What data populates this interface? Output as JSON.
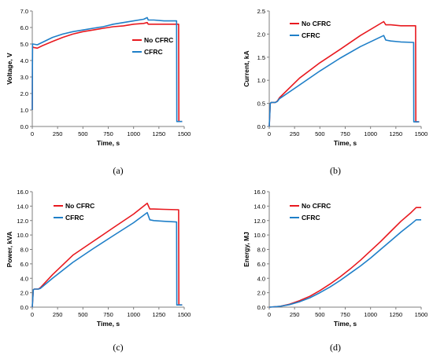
{
  "colors": {
    "no_cfrc": "#e8191f",
    "cfrc": "#1f7fc8",
    "axis": "#7f7f7f",
    "text": "#000000"
  },
  "chart_data": [
    {
      "panel": "(a)",
      "type": "line",
      "xlabel": "Time, s",
      "ylabel": "Voltage, V",
      "xlim": [
        0,
        1500
      ],
      "ylim": [
        0,
        7
      ],
      "xticks": [
        "0",
        "250",
        "500",
        "750",
        "1000",
        "1250",
        "1500"
      ],
      "yticks": [
        "0.0",
        "1.0",
        "2.0",
        "3.0",
        "4.0",
        "5.0",
        "6.0",
        "7.0"
      ],
      "legend_position": "right-middle",
      "series": [
        {
          "name": "No CFRC",
          "color": "#e8191f",
          "x": [
            0,
            2,
            5,
            50,
            100,
            200,
            300,
            400,
            500,
            600,
            700,
            800,
            900,
            1000,
            1100,
            1135,
            1145,
            1200,
            1300,
            1445,
            1447,
            1455,
            1480
          ],
          "y": [
            1.0,
            4.9,
            4.8,
            4.75,
            4.9,
            5.15,
            5.4,
            5.6,
            5.75,
            5.85,
            5.95,
            6.05,
            6.1,
            6.2,
            6.25,
            6.3,
            6.2,
            6.2,
            6.2,
            6.2,
            0.3,
            0.3,
            0.3
          ]
        },
        {
          "name": "CFRC",
          "color": "#1f7fc8",
          "x": [
            0,
            2,
            5,
            50,
            100,
            200,
            300,
            400,
            500,
            600,
            700,
            800,
            900,
            1000,
            1100,
            1135,
            1145,
            1200,
            1300,
            1425,
            1427,
            1435,
            1480
          ],
          "y": [
            1.0,
            5.0,
            5.0,
            4.95,
            5.1,
            5.4,
            5.6,
            5.75,
            5.85,
            5.95,
            6.05,
            6.2,
            6.3,
            6.4,
            6.5,
            6.6,
            6.45,
            6.45,
            6.4,
            6.4,
            0.3,
            0.3,
            0.3
          ]
        }
      ]
    },
    {
      "panel": "(b)",
      "type": "line",
      "xlabel": "Time, s",
      "ylabel": "Current, kA",
      "xlim": [
        0,
        1500
      ],
      "ylim": [
        0,
        2.5
      ],
      "xticks": [
        "0",
        "250",
        "500",
        "750",
        "1000",
        "1250",
        "1500"
      ],
      "yticks": [
        "0.0",
        "0.5",
        "1.0",
        "1.5",
        "2.0",
        "2.5"
      ],
      "legend_position": "top-left",
      "series": [
        {
          "name": "No CFRC",
          "color": "#e8191f",
          "x": [
            0,
            10,
            20,
            60,
            80,
            100,
            300,
            500,
            700,
            900,
            1130,
            1150,
            1200,
            1300,
            1445,
            1447,
            1455,
            1480
          ],
          "y": [
            0,
            0.5,
            0.52,
            0.52,
            0.55,
            0.62,
            1.05,
            1.38,
            1.67,
            1.97,
            2.27,
            2.2,
            2.2,
            2.18,
            2.18,
            0.1,
            0.1,
            0.1
          ]
        },
        {
          "name": "CFRC",
          "color": "#1f7fc8",
          "x": [
            0,
            10,
            20,
            60,
            80,
            100,
            300,
            500,
            700,
            900,
            1130,
            1150,
            1200,
            1300,
            1425,
            1427,
            1435,
            1480
          ],
          "y": [
            0,
            0.5,
            0.52,
            0.52,
            0.54,
            0.6,
            0.9,
            1.2,
            1.48,
            1.73,
            1.97,
            1.87,
            1.85,
            1.83,
            1.82,
            0.1,
            0.1,
            0.1
          ]
        }
      ]
    },
    {
      "panel": "(c)",
      "type": "line",
      "xlabel": "Time, s",
      "ylabel": "Power, kVA",
      "xlim": [
        0,
        1500
      ],
      "ylim": [
        0,
        16
      ],
      "xticks": [
        "0",
        "250",
        "500",
        "750",
        "1000",
        "1250",
        "1500"
      ],
      "yticks": [
        "0.0",
        "2.0",
        "4.0",
        "6.0",
        "8.0",
        "10.0",
        "12.0",
        "14.0",
        "16.0"
      ],
      "legend_position": "top-left",
      "series": [
        {
          "name": "No CFRC",
          "color": "#e8191f",
          "x": [
            0,
            10,
            20,
            60,
            80,
            200,
            400,
            600,
            800,
            1000,
            1135,
            1160,
            1200,
            1300,
            1445,
            1447,
            1455,
            1480
          ],
          "y": [
            0,
            2.4,
            2.5,
            2.5,
            2.7,
            4.5,
            7.2,
            9.1,
            11.0,
            12.9,
            14.4,
            13.6,
            13.6,
            13.55,
            13.5,
            0.3,
            0.3,
            0.3
          ]
        },
        {
          "name": "CFRC",
          "color": "#1f7fc8",
          "x": [
            0,
            10,
            20,
            60,
            80,
            200,
            400,
            600,
            800,
            1000,
            1135,
            1160,
            1200,
            1300,
            1425,
            1427,
            1435,
            1480
          ],
          "y": [
            0,
            2.4,
            2.5,
            2.5,
            2.6,
            4.0,
            6.2,
            8.1,
            9.9,
            11.7,
            13.1,
            12.1,
            12.0,
            11.9,
            11.8,
            0.3,
            0.3,
            0.3
          ]
        }
      ]
    },
    {
      "panel": "(d)",
      "type": "line",
      "xlabel": "Time, s",
      "ylabel": "Energy, MJ",
      "xlim": [
        0,
        1500
      ],
      "ylim": [
        0,
        16
      ],
      "xticks": [
        "0",
        "250",
        "500",
        "750",
        "1000",
        "1250",
        "1500"
      ],
      "yticks": [
        "0.0",
        "2.0",
        "4.0",
        "6.0",
        "8.0",
        "10.0",
        "12.0",
        "14.0",
        "16.0"
      ],
      "legend_position": "top-left",
      "series": [
        {
          "name": "No CFRC",
          "color": "#e8191f",
          "x": [
            0,
            100,
            200,
            300,
            400,
            500,
            600,
            700,
            800,
            900,
            1000,
            1100,
            1200,
            1300,
            1400,
            1450,
            1500
          ],
          "y": [
            0,
            0.1,
            0.4,
            0.9,
            1.5,
            2.3,
            3.2,
            4.2,
            5.3,
            6.5,
            7.8,
            9.1,
            10.5,
            11.9,
            13.1,
            13.8,
            13.8
          ]
        },
        {
          "name": "CFRC",
          "color": "#1f7fc8",
          "x": [
            0,
            100,
            200,
            300,
            400,
            500,
            600,
            700,
            800,
            900,
            1000,
            1100,
            1200,
            1300,
            1400,
            1450,
            1500
          ],
          "y": [
            0,
            0.1,
            0.35,
            0.75,
            1.3,
            2.0,
            2.8,
            3.7,
            4.7,
            5.7,
            6.8,
            8.0,
            9.2,
            10.4,
            11.5,
            12.1,
            12.1
          ]
        }
      ]
    }
  ]
}
